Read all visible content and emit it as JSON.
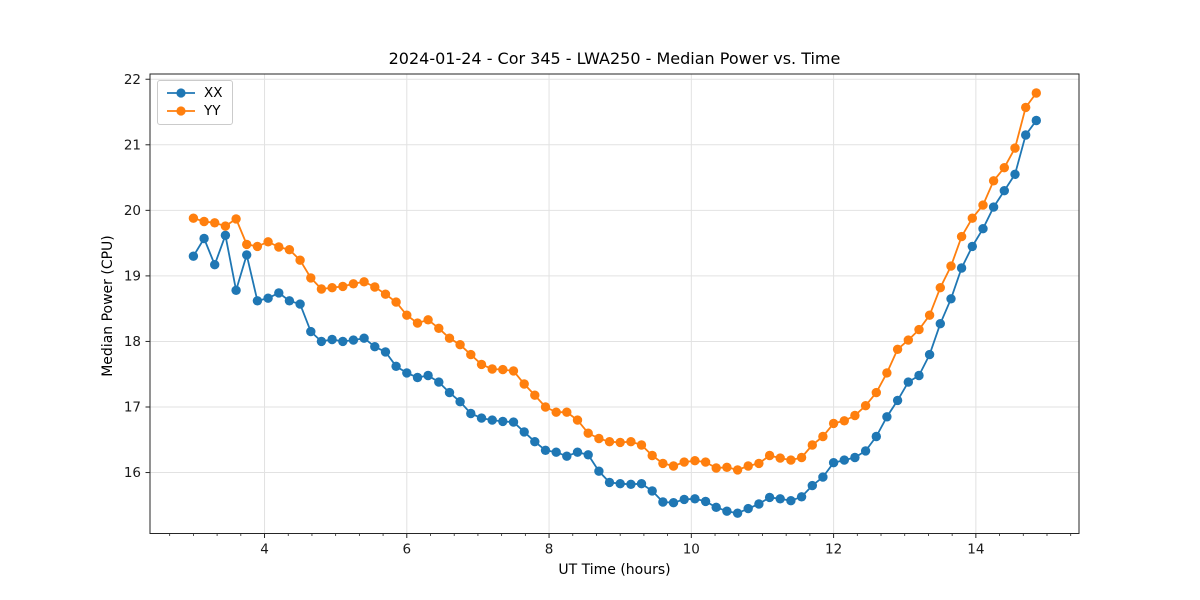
{
  "chart_data": {
    "type": "line",
    "title": "2024-01-24 - Cor 345 - LWA250 - Median Power vs. Time",
    "xlabel": "UT Time (hours)",
    "ylabel": "Median Power (CPU)",
    "xlim": [
      2.39,
      15.45
    ],
    "ylim": [
      15.07,
      22.08
    ],
    "x_major_ticks": [
      4,
      6,
      8,
      10,
      12,
      14
    ],
    "x_minor_step": 0.3333,
    "y_major_ticks": [
      16,
      17,
      18,
      19,
      20,
      21,
      22
    ],
    "grid": true,
    "grid_color": "#e2e2e2",
    "spine_color": "#262626",
    "legend_position": "upper left",
    "x": [
      3.0,
      3.15,
      3.3,
      3.45,
      3.6,
      3.75,
      3.9,
      4.05,
      4.2,
      4.35,
      4.5,
      4.65,
      4.8,
      4.95,
      5.1,
      5.25,
      5.4,
      5.55,
      5.7,
      5.85,
      6.0,
      6.15,
      6.3,
      6.45,
      6.6,
      6.75,
      6.9,
      7.05,
      7.2,
      7.35,
      7.5,
      7.65,
      7.8,
      7.95,
      8.1,
      8.25,
      8.4,
      8.55,
      8.7,
      8.85,
      9.0,
      9.15,
      9.3,
      9.45,
      9.6,
      9.75,
      9.9,
      10.05,
      10.2,
      10.35,
      10.5,
      10.65,
      10.8,
      10.95,
      11.1,
      11.25,
      11.4,
      11.55,
      11.7,
      11.85,
      12.0,
      12.15,
      12.3,
      12.45,
      12.6,
      12.75,
      12.9,
      13.05,
      13.2,
      13.35,
      13.5,
      13.65,
      13.8,
      13.95,
      14.1,
      14.25,
      14.4,
      14.55,
      14.7,
      14.85
    ],
    "series": [
      {
        "name": "XX",
        "color": "#1f77b4",
        "values": [
          19.3,
          19.57,
          19.17,
          19.62,
          18.78,
          19.32,
          18.62,
          18.66,
          18.74,
          18.62,
          18.57,
          18.15,
          18.0,
          18.03,
          18.0,
          18.02,
          18.05,
          17.92,
          17.84,
          17.62,
          17.52,
          17.45,
          17.48,
          17.38,
          17.22,
          17.08,
          16.9,
          16.83,
          16.8,
          16.78,
          16.77,
          16.62,
          16.47,
          16.34,
          16.31,
          16.25,
          16.31,
          16.27,
          16.02,
          15.85,
          15.83,
          15.82,
          15.83,
          15.72,
          15.55,
          15.54,
          15.59,
          15.6,
          15.56,
          15.47,
          15.41,
          15.38,
          15.45,
          15.52,
          15.62,
          15.6,
          15.57,
          15.63,
          15.8,
          15.93,
          16.15,
          16.19,
          16.23,
          16.33,
          16.55,
          16.85,
          17.1,
          17.38,
          17.48,
          17.8,
          18.27,
          18.65,
          19.12,
          19.45,
          19.72,
          20.05,
          20.3,
          20.55,
          21.15,
          21.37
        ]
      },
      {
        "name": "YY",
        "color": "#ff7f0e",
        "values": [
          19.88,
          19.83,
          19.81,
          19.76,
          19.87,
          19.48,
          19.45,
          19.52,
          19.44,
          19.4,
          19.24,
          18.97,
          18.8,
          18.82,
          18.84,
          18.88,
          18.91,
          18.83,
          18.72,
          18.6,
          18.4,
          18.28,
          18.33,
          18.2,
          18.05,
          17.95,
          17.8,
          17.65,
          17.58,
          17.57,
          17.55,
          17.35,
          17.18,
          17.0,
          16.92,
          16.92,
          16.8,
          16.6,
          16.52,
          16.47,
          16.46,
          16.47,
          16.42,
          16.26,
          16.14,
          16.1,
          16.16,
          16.18,
          16.16,
          16.07,
          16.08,
          16.04,
          16.1,
          16.14,
          16.26,
          16.22,
          16.19,
          16.23,
          16.42,
          16.55,
          16.75,
          16.79,
          16.87,
          17.02,
          17.22,
          17.52,
          17.88,
          18.02,
          18.18,
          18.4,
          18.82,
          19.15,
          19.6,
          19.88,
          20.08,
          20.45,
          20.65,
          20.95,
          21.57,
          21.79
        ]
      }
    ]
  }
}
